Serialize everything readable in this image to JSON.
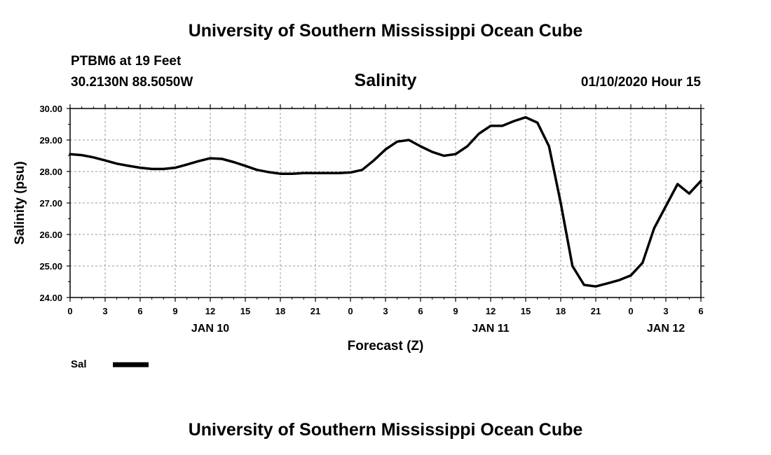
{
  "header": {
    "title": "University of Southern Mississippi Ocean Cube",
    "station": "PTBM6 at 19 Feet",
    "coords": "30.2130N 88.5050W",
    "datetime": "01/10/2020 Hour 15"
  },
  "footer": {
    "title": "University of Southern Mississippi Ocean Cube"
  },
  "colors": {
    "line": "#000000",
    "grid": "#999999",
    "background": "#ffffff"
  },
  "chart_data": {
    "type": "line",
    "title": "Salinity",
    "xlabel": "Forecast (Z)",
    "ylabel": "Salinity (psu)",
    "ylim": [
      24.0,
      30.0
    ],
    "xlim": [
      0,
      54
    ],
    "grid": true,
    "y_ticks": [
      "24.00",
      "25.00",
      "26.00",
      "27.00",
      "28.00",
      "29.00",
      "30.00"
    ],
    "y_tick_values": [
      24,
      25,
      26,
      27,
      28,
      29,
      30
    ],
    "x_ticks": [
      {
        "h": 0,
        "label": "0"
      },
      {
        "h": 3,
        "label": "3"
      },
      {
        "h": 6,
        "label": "6"
      },
      {
        "h": 9,
        "label": "9"
      },
      {
        "h": 12,
        "label": "12"
      },
      {
        "h": 15,
        "label": "15"
      },
      {
        "h": 18,
        "label": "18"
      },
      {
        "h": 21,
        "label": "21"
      },
      {
        "h": 24,
        "label": "0"
      },
      {
        "h": 27,
        "label": "3"
      },
      {
        "h": 30,
        "label": "6"
      },
      {
        "h": 33,
        "label": "9"
      },
      {
        "h": 36,
        "label": "12"
      },
      {
        "h": 39,
        "label": "15"
      },
      {
        "h": 42,
        "label": "18"
      },
      {
        "h": 45,
        "label": "21"
      },
      {
        "h": 48,
        "label": "0"
      },
      {
        "h": 51,
        "label": "3"
      },
      {
        "h": 54,
        "label": "6"
      }
    ],
    "date_labels": [
      {
        "h": 12,
        "label": "JAN 10"
      },
      {
        "h": 36,
        "label": "JAN 11"
      },
      {
        "h": 51,
        "label": "JAN 12"
      }
    ],
    "legend": {
      "position": "bottom-left",
      "entries": [
        "Sal"
      ]
    },
    "series": [
      {
        "name": "Sal",
        "x": [
          0,
          1,
          2,
          3,
          4,
          5,
          6,
          7,
          8,
          9,
          10,
          11,
          12,
          13,
          14,
          15,
          16,
          17,
          18,
          19,
          20,
          21,
          22,
          23,
          24,
          25,
          26,
          27,
          28,
          29,
          30,
          31,
          32,
          33,
          34,
          35,
          36,
          37,
          38,
          39,
          40,
          41,
          42,
          43,
          44,
          45,
          46,
          47,
          48,
          49,
          50,
          51,
          52,
          53,
          54
        ],
        "values": [
          28.55,
          28.52,
          28.45,
          28.35,
          28.25,
          28.18,
          28.12,
          28.08,
          28.08,
          28.12,
          28.22,
          28.33,
          28.42,
          28.4,
          28.3,
          28.18,
          28.05,
          27.98,
          27.93,
          27.93,
          27.95,
          27.95,
          27.95,
          27.95,
          27.97,
          28.05,
          28.35,
          28.7,
          28.95,
          29.0,
          28.8,
          28.62,
          28.5,
          28.55,
          28.8,
          29.2,
          29.45,
          29.45,
          29.6,
          29.72,
          29.55,
          28.8,
          27.0,
          25.0,
          24.4,
          24.35,
          24.45,
          24.55,
          24.7,
          25.1,
          26.2,
          26.9,
          27.6,
          27.3,
          27.7
        ]
      }
    ]
  }
}
